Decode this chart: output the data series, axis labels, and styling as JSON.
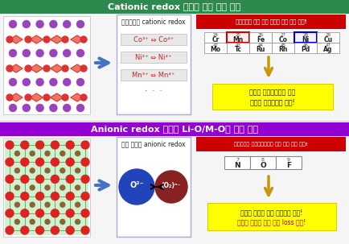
{
  "top_header_bg": "#2d8a4e",
  "top_header_text": "Cationic redox 우위의 기존 양극 물질",
  "bottom_header_bg": "#9400d3",
  "bottom_header_text": "Anionic redox 우위의 Li-O/M-O계 양극 물질",
  "top_box_title": "전이금속의 cationic redox",
  "top_reactions": [
    "Co³⁺ ⇔ Co⁴⁺",
    "Ni²⁺ ⇔ Ni⁴⁺",
    "Mn³⁺ ⇔ Mn⁴⁺"
  ],
  "top_red_banner": "전이금속의 양에 의해 양극의 발진 용량 결정!",
  "periodic_top_row1_nums": [
    "24",
    "25",
    "26",
    "27",
    "28",
    "29"
  ],
  "periodic_top_row1_syms": [
    "Cr",
    "Mn",
    "Fe",
    "Co",
    "Ni",
    "Cu"
  ],
  "periodic_top_row2_nums": [
    "42",
    "43",
    "44",
    "45",
    "46",
    "47"
  ],
  "periodic_top_row2_syms": [
    "Mo",
    "Tc",
    "Ru",
    "Rh",
    "Pd",
    "Ag"
  ],
  "top_yellow_text1": "중간의 전이금속으로 인해",
  "top_yellow_text2": "중간당 발진용량의 한계!",
  "bottom_box_title": "산소 이온의 anionic redox",
  "bottom_red_banner": "산소이온의 활용가능정도에 의해 발진 용량 결정!",
  "periodic_bottom_row1_nums": [
    "7",
    "8",
    "9"
  ],
  "periodic_bottom_row1_syms": [
    "N",
    "O",
    "F"
  ],
  "bottom_yellow_text1": "가벼운 산소로 인해 초고용량 가능!",
  "bottom_yellow_text2": "산화의 무게로 인한 용량 loss 존재!",
  "arrow_blue": "#4472c4",
  "arrow_gold": "#c8960a",
  "yellow_bg": "#ffff00",
  "red_banner_bg": "#cc0000",
  "section_bg": "#f5f5f5",
  "box_bg": "#f0f0f0",
  "box_ec": "#aaaaaa",
  "reaction_bg": "#e8e8e8",
  "reaction_color": "#cc2222"
}
